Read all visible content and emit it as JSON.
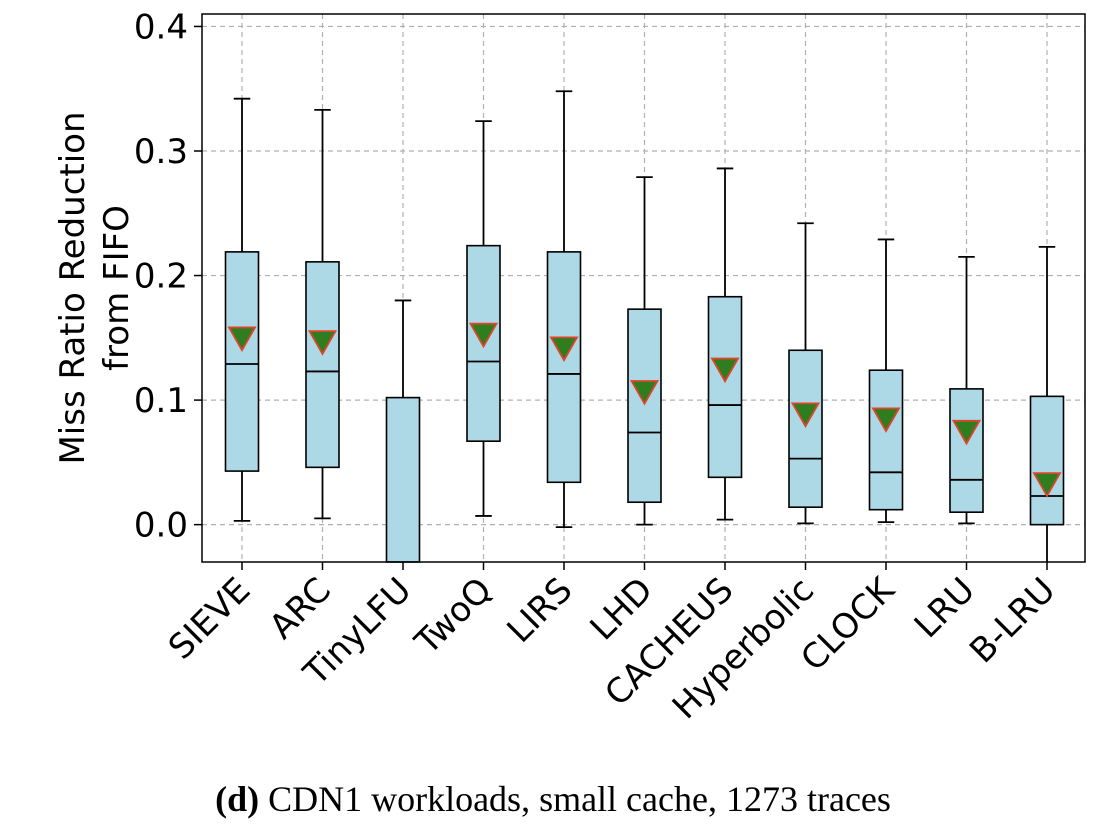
{
  "caption": {
    "label": "(d)",
    "text": "CDN1 workloads, small cache, 1273 traces"
  },
  "chart_data": {
    "type": "box",
    "ylabel_lines": [
      "Miss Ratio Reduction",
      "from FIFO"
    ],
    "ylim": [
      -0.03,
      0.41
    ],
    "yticks": [
      0.0,
      0.1,
      0.2,
      0.3,
      0.4
    ],
    "ytick_labels": [
      "0.0",
      "0.1",
      "0.2",
      "0.3",
      "0.4"
    ],
    "grid": true,
    "box_fill": "#add8e6",
    "mean_marker_fill": "#2e7d1f",
    "mean_marker_edge": "#e0442a",
    "categories": [
      "SIEVE",
      "ARC",
      "TinyLFU",
      "TwoQ",
      "LIRS",
      "LHD",
      "CACHEUS",
      "Hyperbolic",
      "CLOCK",
      "LRU",
      "B-LRU"
    ],
    "boxes": [
      {
        "whisker_low": 0.003,
        "q1": 0.043,
        "median": 0.129,
        "q3": 0.219,
        "whisker_high": 0.342,
        "mean": 0.15
      },
      {
        "whisker_low": 0.005,
        "q1": 0.046,
        "median": 0.123,
        "q3": 0.211,
        "whisker_high": 0.333,
        "mean": 0.147
      },
      {
        "whisker_low": -0.03,
        "q1": -0.03,
        "median": null,
        "q3": 0.102,
        "whisker_high": 0.18,
        "mean": null
      },
      {
        "whisker_low": 0.007,
        "q1": 0.067,
        "median": 0.131,
        "q3": 0.224,
        "whisker_high": 0.324,
        "mean": 0.153
      },
      {
        "whisker_low": -0.002,
        "q1": 0.034,
        "median": 0.121,
        "q3": 0.219,
        "whisker_high": 0.348,
        "mean": 0.142
      },
      {
        "whisker_low": 0.0,
        "q1": 0.018,
        "median": 0.074,
        "q3": 0.173,
        "whisker_high": 0.279,
        "mean": 0.107
      },
      {
        "whisker_low": 0.004,
        "q1": 0.038,
        "median": 0.096,
        "q3": 0.183,
        "whisker_high": 0.286,
        "mean": 0.125
      },
      {
        "whisker_low": 0.001,
        "q1": 0.014,
        "median": 0.053,
        "q3": 0.14,
        "whisker_high": 0.242,
        "mean": 0.089
      },
      {
        "whisker_low": 0.002,
        "q1": 0.012,
        "median": 0.042,
        "q3": 0.124,
        "whisker_high": 0.229,
        "mean": 0.085
      },
      {
        "whisker_low": 0.001,
        "q1": 0.01,
        "median": 0.036,
        "q3": 0.109,
        "whisker_high": 0.215,
        "mean": 0.075
      },
      {
        "whisker_low": -0.03,
        "q1": 0.0,
        "median": 0.023,
        "q3": 0.103,
        "whisker_high": 0.223,
        "mean": 0.033
      }
    ]
  }
}
